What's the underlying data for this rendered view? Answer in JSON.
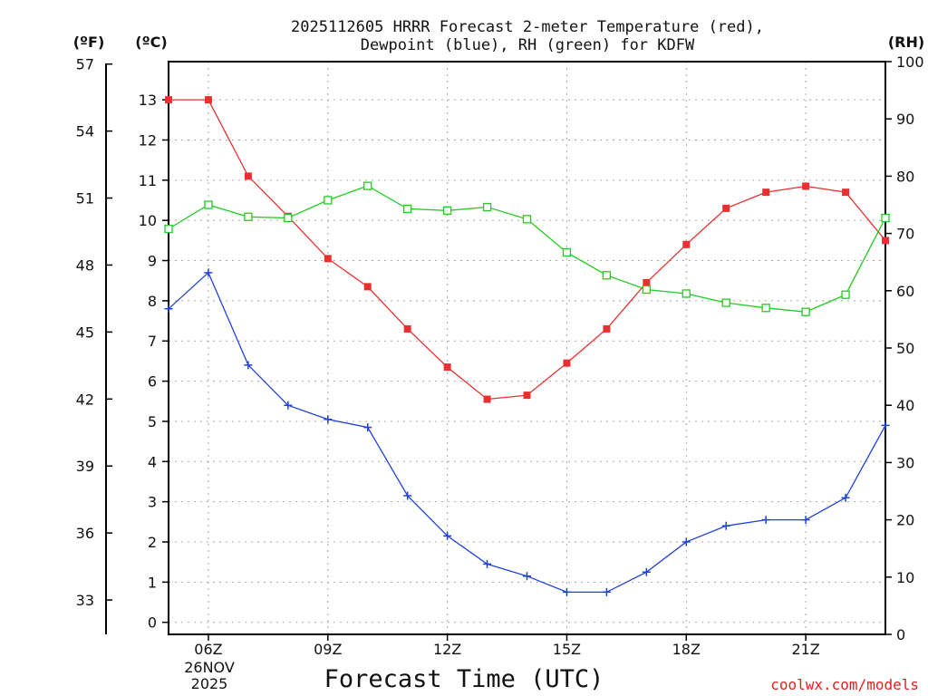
{
  "chart_data": {
    "type": "line",
    "title_line1": "2025112605 HRRR Forecast 2-meter Temperature (red),",
    "title_line2": "Dewpoint (blue), RH (green) for KDFW",
    "xlabel": "Forecast Time (UTC)",
    "date_label_1": "26NOV",
    "date_label_2": "2025",
    "unit_f": "(ºF)",
    "unit_c": "(ºC)",
    "unit_rh": "(RH)",
    "credit": "coolwx.com/models",
    "colors": {
      "temperature": "#e83030",
      "dewpoint": "#2040e0",
      "rh": "#22cc22"
    },
    "x_hours": [
      5,
      6,
      7,
      8,
      9,
      10,
      11,
      12,
      13,
      14,
      15,
      16,
      17,
      18,
      19,
      20,
      21,
      22,
      23
    ],
    "x_ticks": [
      {
        "hour": 6,
        "label": "06Z"
      },
      {
        "hour": 9,
        "label": "09Z"
      },
      {
        "hour": 12,
        "label": "12Z"
      },
      {
        "hour": 15,
        "label": "15Z"
      },
      {
        "hour": 18,
        "label": "18Z"
      },
      {
        "hour": 21,
        "label": "21Z"
      }
    ],
    "xlim": [
      5,
      23
    ],
    "ylim_c": [
      -0.3,
      13.95
    ],
    "ylim_rh": [
      0,
      100
    ],
    "yticks_c": [
      "0",
      "1",
      "2",
      "3",
      "4",
      "5",
      "6",
      "7",
      "8",
      "9",
      "10",
      "11",
      "12",
      "13"
    ],
    "yticks_f": [
      "33",
      "36",
      "39",
      "42",
      "45",
      "48",
      "51",
      "54",
      "57"
    ],
    "yticks_rh": [
      "0",
      "10",
      "20",
      "30",
      "40",
      "50",
      "60",
      "70",
      "80",
      "90",
      "100"
    ],
    "series": [
      {
        "name": "Temperature",
        "unit": "C",
        "marker": "square",
        "values": [
          13.0,
          13.0,
          11.1,
          10.1,
          9.05,
          8.35,
          7.3,
          6.35,
          5.55,
          5.65,
          6.45,
          7.3,
          8.45,
          9.4,
          10.3,
          10.7,
          10.85,
          10.7,
          9.5
        ]
      },
      {
        "name": "Dewpoint",
        "unit": "C",
        "marker": "plus",
        "values": [
          7.8,
          8.7,
          6.4,
          5.4,
          5.05,
          4.85,
          3.15,
          2.15,
          1.45,
          1.15,
          0.75,
          0.75,
          1.25,
          2.0,
          2.4,
          2.55,
          2.55,
          3.1,
          4.9
        ]
      },
      {
        "name": "RH",
        "unit": "%",
        "marker": "open-square",
        "values": [
          70.8,
          75.0,
          72.9,
          72.7,
          75.8,
          78.3,
          74.3,
          74.0,
          74.6,
          72.5,
          66.7,
          62.7,
          60.2,
          59.5,
          57.9,
          57.0,
          56.3,
          59.3,
          72.7
        ]
      }
    ]
  }
}
